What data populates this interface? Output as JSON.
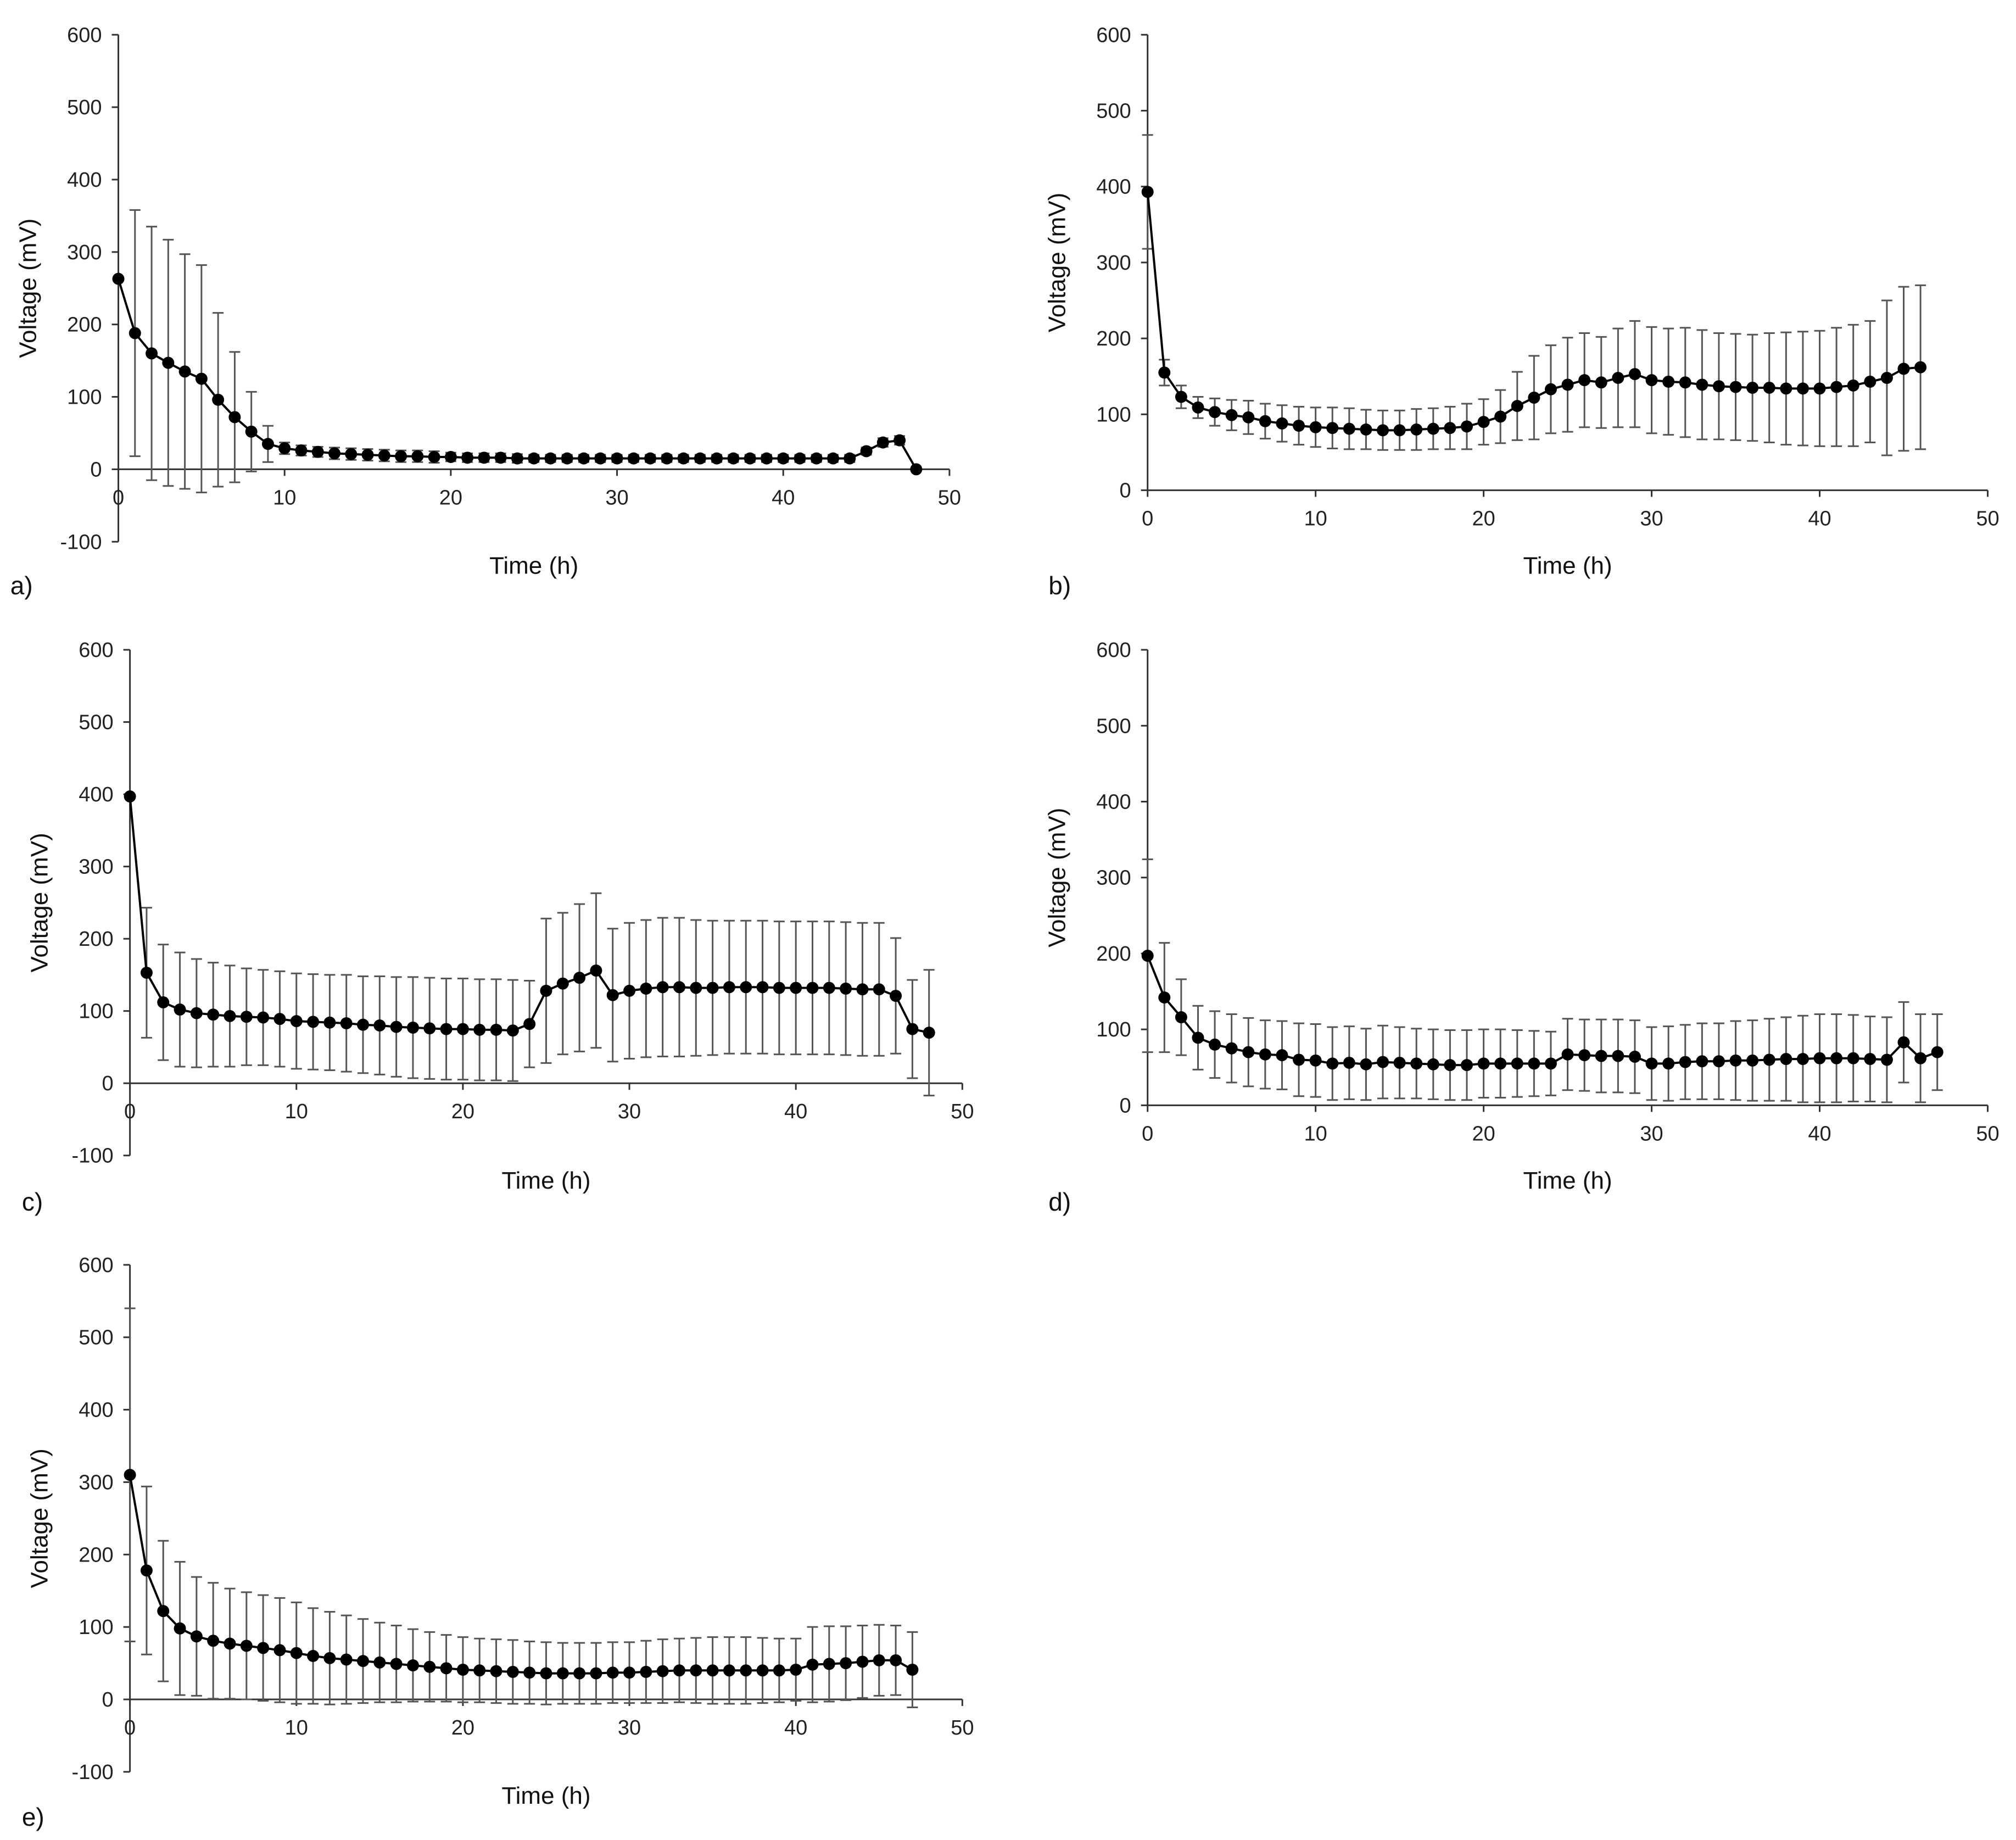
{
  "chart_data": [
    {
      "id": "a",
      "type": "line",
      "panel_label": "a)",
      "xlabel": "Time (h)",
      "ylabel": "Voltage (mV)",
      "xlim": [
        0,
        50
      ],
      "ylim": [
        -100,
        600
      ],
      "xticks": [
        0,
        10,
        20,
        30,
        40,
        50
      ],
      "yticks": [
        -100,
        0,
        100,
        200,
        300,
        400,
        500,
        600
      ],
      "x": [
        0,
        1,
        2,
        3,
        4,
        5,
        6,
        7,
        8,
        9,
        10,
        11,
        12,
        13,
        14,
        15,
        16,
        17,
        18,
        19,
        20,
        21,
        22,
        23,
        24,
        25,
        26,
        27,
        28,
        29,
        30,
        31,
        32,
        33,
        34,
        35,
        36,
        37,
        38,
        39,
        40,
        41,
        42,
        43,
        44,
        45,
        46,
        47,
        48
      ],
      "y": [
        263,
        188,
        160,
        147,
        135,
        125,
        96,
        72,
        52,
        35,
        29,
        26,
        24,
        22,
        21,
        20,
        19,
        18,
        18,
        17,
        17,
        16,
        16,
        16,
        15,
        15,
        15,
        15,
        15,
        15,
        15,
        15,
        15,
        15,
        15,
        15,
        15,
        15,
        15,
        15,
        15,
        15,
        15,
        15,
        15,
        25,
        37,
        40,
        0
      ],
      "err": [
        0,
        170,
        175,
        170,
        162,
        157,
        120,
        90,
        55,
        25,
        8,
        7,
        7,
        8,
        8,
        8,
        8,
        8,
        8,
        8,
        6,
        6,
        6,
        6,
        6,
        5,
        5,
        5,
        5,
        5,
        5,
        5,
        5,
        5,
        5,
        5,
        5,
        5,
        5,
        5,
        5,
        5,
        5,
        5,
        5,
        5,
        6,
        6,
        0
      ]
    },
    {
      "id": "b",
      "type": "line",
      "panel_label": "b)",
      "xlabel": "Time (h)",
      "ylabel": "Voltage (mV)",
      "xlim": [
        0,
        50
      ],
      "ylim": [
        0,
        600
      ],
      "xticks": [
        0,
        10,
        20,
        30,
        40,
        50
      ],
      "yticks": [
        0,
        100,
        200,
        300,
        400,
        500,
        600
      ],
      "x": [
        0,
        1,
        2,
        3,
        4,
        5,
        6,
        7,
        8,
        9,
        10,
        11,
        12,
        13,
        14,
        15,
        16,
        17,
        18,
        19,
        20,
        21,
        22,
        23,
        24,
        25,
        26,
        27,
        28,
        29,
        30,
        31,
        32,
        33,
        34,
        35,
        36,
        37,
        38,
        39,
        40,
        41,
        42,
        43,
        44,
        45,
        46
      ],
      "y": [
        393,
        155,
        123,
        109,
        103,
        99,
        96,
        91,
        88,
        85,
        83,
        82,
        81,
        80,
        79,
        79,
        80,
        81,
        82,
        84,
        90,
        97,
        111,
        122,
        133,
        139,
        145,
        142,
        148,
        153,
        145,
        143,
        142,
        139,
        137,
        136,
        135,
        135,
        134,
        134,
        134,
        136,
        138,
        143,
        148,
        160,
        162
      ],
      "err": [
        75,
        17,
        15,
        14,
        18,
        20,
        22,
        23,
        24,
        25,
        26,
        27,
        27,
        26,
        26,
        26,
        27,
        27,
        28,
        30,
        30,
        35,
        45,
        55,
        58,
        62,
        62,
        60,
        65,
        70,
        70,
        70,
        72,
        72,
        70,
        70,
        70,
        72,
        74,
        75,
        76,
        78,
        80,
        80,
        102,
        108,
        108
      ]
    },
    {
      "id": "c",
      "type": "line",
      "panel_label": "c)",
      "xlabel": "Time (h)",
      "ylabel": "Voltage (mV)",
      "xlim": [
        0,
        50
      ],
      "ylim": [
        -100,
        600
      ],
      "xticks": [
        0,
        10,
        20,
        30,
        40,
        50
      ],
      "yticks": [
        -100,
        0,
        100,
        200,
        300,
        400,
        500,
        600
      ],
      "x": [
        0,
        1,
        2,
        3,
        4,
        5,
        6,
        7,
        8,
        9,
        10,
        11,
        12,
        13,
        14,
        15,
        16,
        17,
        18,
        19,
        20,
        21,
        22,
        23,
        24,
        25,
        26,
        27,
        28,
        29,
        30,
        31,
        32,
        33,
        34,
        35,
        36,
        37,
        38,
        39,
        40,
        41,
        42,
        43,
        44,
        45,
        46,
        47,
        48
      ],
      "y": [
        397,
        153,
        112,
        102,
        97,
        95,
        93,
        92,
        91,
        89,
        86,
        85,
        84,
        83,
        81,
        80,
        78,
        77,
        76,
        75,
        75,
        74,
        74,
        73,
        82,
        128,
        138,
        146,
        156,
        122,
        128,
        131,
        133,
        133,
        132,
        132,
        133,
        133,
        133,
        132,
        132,
        132,
        132,
        131,
        130,
        130,
        121,
        75,
        70
      ],
      "err": [
        0,
        90,
        80,
        79,
        75,
        72,
        70,
        67,
        66,
        66,
        66,
        66,
        66,
        67,
        67,
        68,
        69,
        70,
        70,
        70,
        70,
        70,
        70,
        70,
        60,
        100,
        98,
        102,
        107,
        92,
        94,
        95,
        96,
        96,
        94,
        93,
        92,
        92,
        92,
        92,
        92,
        92,
        92,
        92,
        92,
        92,
        80,
        68,
        87
      ]
    },
    {
      "id": "d",
      "type": "line",
      "panel_label": "d)",
      "xlabel": "Time (h)",
      "ylabel": "Voltage (mV)",
      "xlim": [
        0,
        50
      ],
      "ylim": [
        0,
        600
      ],
      "xticks": [
        0,
        10,
        20,
        30,
        40,
        50
      ],
      "yticks": [
        0,
        100,
        200,
        300,
        400,
        500,
        600
      ],
      "x": [
        0,
        1,
        2,
        3,
        4,
        5,
        6,
        7,
        8,
        9,
        10,
        11,
        12,
        13,
        14,
        15,
        16,
        17,
        18,
        19,
        20,
        21,
        22,
        23,
        24,
        25,
        26,
        27,
        28,
        29,
        30,
        31,
        32,
        33,
        34,
        35,
        36,
        37,
        38,
        39,
        40,
        41,
        42,
        43,
        44,
        45,
        46,
        47
      ],
      "y": [
        197,
        142,
        116,
        89,
        80,
        75,
        70,
        67,
        66,
        60,
        59,
        55,
        56,
        54,
        57,
        56,
        55,
        54,
        53,
        53,
        55,
        55,
        55,
        55,
        55,
        67,
        66,
        65,
        65,
        64,
        55,
        55,
        57,
        58,
        58,
        59,
        59,
        60,
        61,
        61,
        62,
        62,
        62,
        61,
        60,
        83,
        62,
        70
      ],
      "err": [
        127,
        72,
        50,
        42,
        44,
        45,
        45,
        45,
        45,
        48,
        48,
        48,
        48,
        47,
        48,
        47,
        46,
        46,
        46,
        46,
        45,
        45,
        44,
        43,
        42,
        47,
        47,
        48,
        48,
        48,
        48,
        49,
        49,
        50,
        50,
        52,
        53,
        54,
        55,
        57,
        58,
        58,
        57,
        56,
        56,
        53,
        58,
        50
      ]
    },
    {
      "id": "e",
      "type": "line",
      "panel_label": "e)",
      "xlabel": "Time (h)",
      "ylabel": "Voltage (mV)",
      "xlim": [
        0,
        50
      ],
      "ylim": [
        -100,
        600
      ],
      "xticks": [
        0,
        10,
        20,
        30,
        40,
        50
      ],
      "yticks": [
        -100,
        0,
        100,
        200,
        300,
        400,
        500,
        600
      ],
      "x": [
        0,
        1,
        2,
        3,
        4,
        5,
        6,
        7,
        8,
        9,
        10,
        11,
        12,
        13,
        14,
        15,
        16,
        17,
        18,
        19,
        20,
        21,
        22,
        23,
        24,
        25,
        26,
        27,
        28,
        29,
        30,
        31,
        32,
        33,
        34,
        35,
        36,
        37,
        38,
        39,
        40,
        41,
        42,
        43,
        44,
        45,
        46,
        47
      ],
      "y": [
        310,
        178,
        122,
        98,
        87,
        81,
        77,
        74,
        71,
        68,
        64,
        60,
        57,
        55,
        53,
        51,
        49,
        47,
        45,
        43,
        41,
        40,
        39,
        38,
        37,
        36,
        36,
        36,
        36,
        37,
        37,
        38,
        39,
        40,
        40,
        40,
        40,
        40,
        40,
        40,
        41,
        48,
        49,
        50,
        52,
        54,
        54,
        41
      ],
      "err": [
        230,
        116,
        97,
        92,
        82,
        80,
        76,
        74,
        73,
        72,
        70,
        66,
        64,
        61,
        58,
        55,
        53,
        50,
        48,
        46,
        45,
        44,
        44,
        44,
        43,
        43,
        42,
        42,
        42,
        42,
        42,
        43,
        44,
        44,
        45,
        46,
        46,
        46,
        45,
        44,
        43,
        52,
        52,
        51,
        50,
        49,
        48,
        52
      ]
    }
  ]
}
